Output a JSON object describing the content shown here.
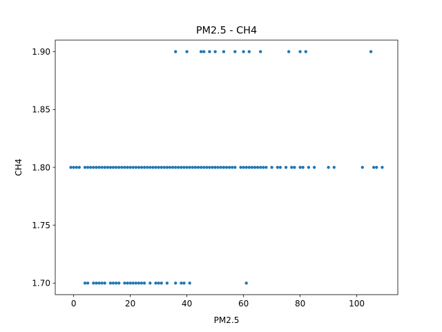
{
  "chart_data": {
    "type": "scatter",
    "title": "PM2.5 - CH4",
    "xlabel": "PM2.5",
    "ylabel": "CH4",
    "xlim": [
      -6.5,
      114.5
    ],
    "ylim": [
      1.69,
      1.91
    ],
    "xticks": [
      0,
      20,
      40,
      60,
      80,
      100
    ],
    "yticks": [
      1.7,
      1.75,
      1.8,
      1.85,
      1.9
    ],
    "ytick_labels": [
      "1.70",
      "1.75",
      "1.80",
      "1.85",
      "1.90"
    ],
    "grid": false,
    "color": "#1f77b4",
    "series": [
      {
        "x": [
          36,
          40,
          45,
          46,
          48,
          50,
          53,
          57,
          60,
          62,
          66,
          76,
          80,
          82,
          105,
          -1,
          0,
          1,
          2,
          4,
          5,
          6,
          7,
          8,
          9,
          10,
          11,
          12,
          13,
          14,
          15,
          16,
          17,
          18,
          19,
          20,
          21,
          22,
          23,
          24,
          25,
          26,
          27,
          28,
          29,
          30,
          31,
          32,
          33,
          34,
          35,
          36,
          37,
          38,
          39,
          40,
          41,
          42,
          43,
          44,
          45,
          46,
          47,
          48,
          49,
          50,
          51,
          52,
          53,
          54,
          55,
          56,
          57,
          59,
          60,
          61,
          62,
          63,
          64,
          65,
          66,
          67,
          68,
          70,
          72,
          73,
          75,
          77,
          78,
          80,
          81,
          83,
          85,
          90,
          92,
          102,
          106,
          107,
          109,
          4,
          5,
          7,
          8,
          9,
          10,
          11,
          13,
          14,
          15,
          16,
          18,
          19,
          20,
          21,
          22,
          23,
          24,
          25,
          27,
          29,
          30,
          31,
          33,
          36,
          38,
          39,
          41,
          61
        ],
        "y": [
          1.9,
          1.9,
          1.9,
          1.9,
          1.9,
          1.9,
          1.9,
          1.9,
          1.9,
          1.9,
          1.9,
          1.9,
          1.9,
          1.9,
          1.9,
          1.8,
          1.8,
          1.8,
          1.8,
          1.8,
          1.8,
          1.8,
          1.8,
          1.8,
          1.8,
          1.8,
          1.8,
          1.8,
          1.8,
          1.8,
          1.8,
          1.8,
          1.8,
          1.8,
          1.8,
          1.8,
          1.8,
          1.8,
          1.8,
          1.8,
          1.8,
          1.8,
          1.8,
          1.8,
          1.8,
          1.8,
          1.8,
          1.8,
          1.8,
          1.8,
          1.8,
          1.8,
          1.8,
          1.8,
          1.8,
          1.8,
          1.8,
          1.8,
          1.8,
          1.8,
          1.8,
          1.8,
          1.8,
          1.8,
          1.8,
          1.8,
          1.8,
          1.8,
          1.8,
          1.8,
          1.8,
          1.8,
          1.8,
          1.8,
          1.8,
          1.8,
          1.8,
          1.8,
          1.8,
          1.8,
          1.8,
          1.8,
          1.8,
          1.8,
          1.8,
          1.8,
          1.8,
          1.8,
          1.8,
          1.8,
          1.8,
          1.8,
          1.8,
          1.8,
          1.8,
          1.8,
          1.8,
          1.8,
          1.8,
          1.7,
          1.7,
          1.7,
          1.7,
          1.7,
          1.7,
          1.7,
          1.7,
          1.7,
          1.7,
          1.7,
          1.7,
          1.7,
          1.7,
          1.7,
          1.7,
          1.7,
          1.7,
          1.7,
          1.7,
          1.7,
          1.7,
          1.7,
          1.7,
          1.7,
          1.7,
          1.7,
          1.7,
          1.7
        ]
      }
    ]
  }
}
